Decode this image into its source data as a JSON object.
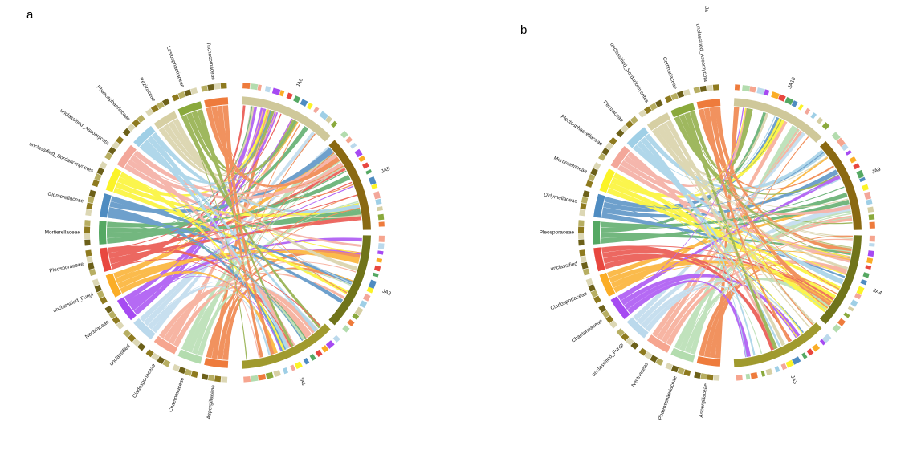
{
  "panels": [
    {
      "letter": "a",
      "chart_data": {
        "type": "chord",
        "groups": [
          "JA6",
          "JA5",
          "JA2",
          "JA1"
        ],
        "taxa": [
          "Aspergillaceae",
          "Chaetomiaceae",
          "Cladosporiaceae",
          "unclassified",
          "Nectriaceae",
          "unclassified_Fungi",
          "Pleosporaceae",
          "Mortierellaceae",
          "Glomerellaceae",
          "unclassified_Sordariomycetes",
          "unclassified_Ascomycota",
          "Phaeosphaeriaceae",
          "Pezizaceae",
          "Lasiosphaeriaceae",
          "Trichocomaceae"
        ]
      }
    },
    {
      "letter": "b",
      "chart_data": {
        "type": "chord",
        "groups": [
          "JA10",
          "JA9",
          "JA4",
          "JA3"
        ],
        "taxa": [
          "Aspergillaceae",
          "Phaeosphaeriaceae",
          "Nectriaceae",
          "unclassified_Fungi",
          "Chaetomiaceae",
          "Cladosporiaceae",
          "unclassified",
          "Pleosporaceae",
          "Didymellaceae",
          "Mortierellaceae",
          "Plectosphaerellaceae",
          "Pezizaceae",
          "unclassified_Sordariomycetes",
          "Cortinariaceae",
          "unclassified_Ascomycota"
        ],
        "top_label": "Ja"
      }
    }
  ],
  "colors": [
    "#ee7b3c",
    "#b3dcae",
    "#f6a58f",
    "#bbd9ec",
    "#a64af2",
    "#fbad26",
    "#e8473f",
    "#55a863",
    "#4f8cc1",
    "#fbf327",
    "#f3a79a",
    "#9fcfe6",
    "#d6cfa3",
    "#8aa93c"
  ],
  "group_colors": [
    "#cfc89a",
    "#8a6912",
    "#70741a",
    "#a09a2e"
  ],
  "label_colors": [
    "#dcd7b4",
    "#8e7a1f",
    "#b7ae62",
    "#6c6019"
  ]
}
